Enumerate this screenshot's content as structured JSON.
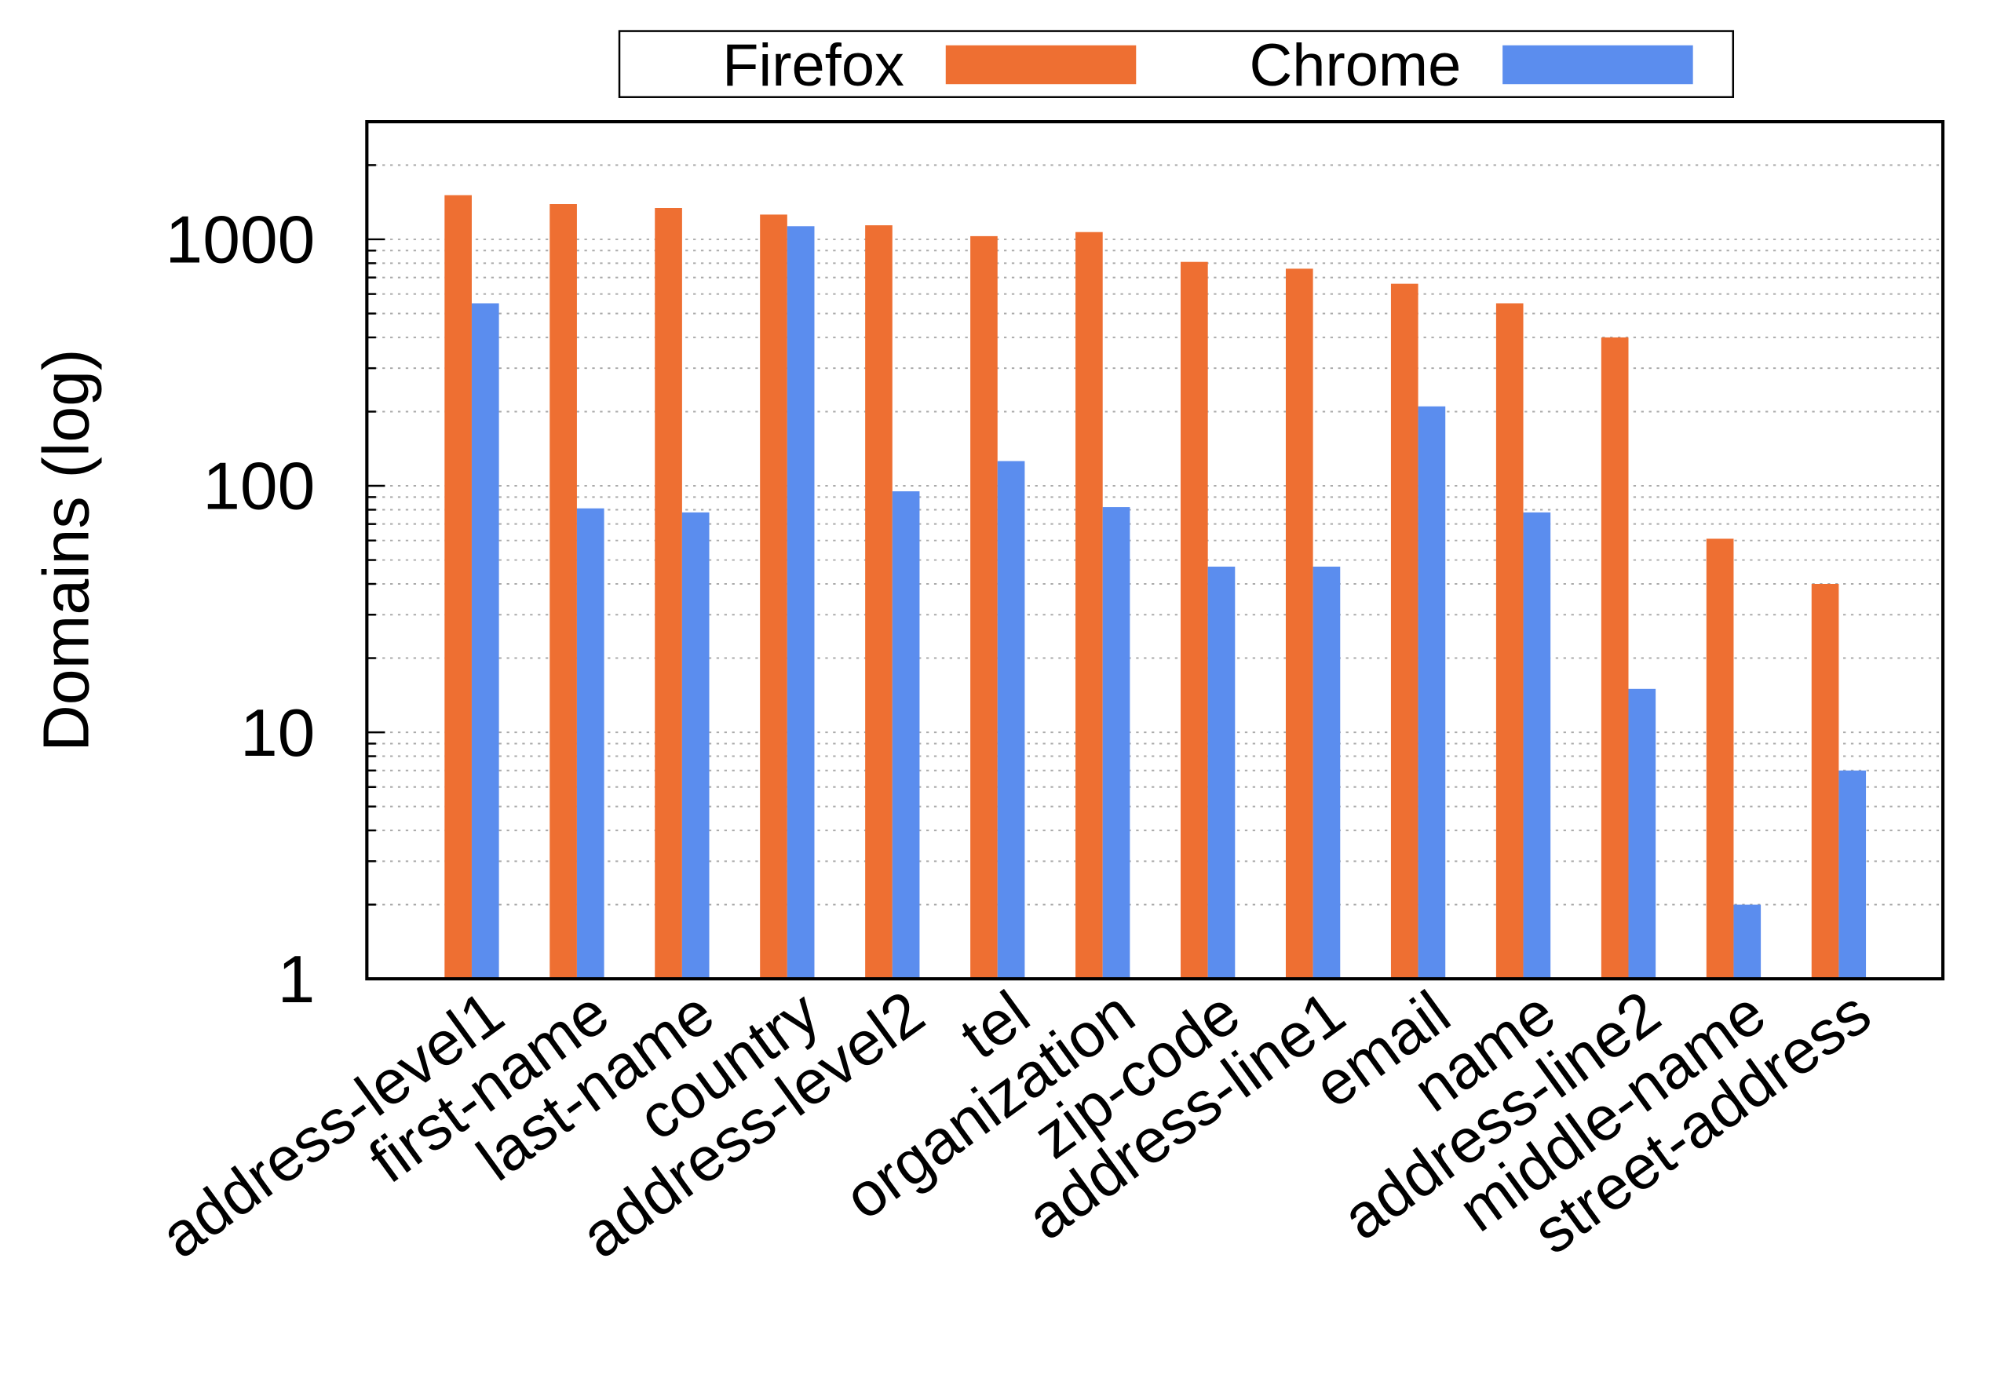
{
  "chart_data": {
    "type": "bar",
    "title": "",
    "xlabel": "",
    "ylabel": "Domains (log)",
    "yscale": "log",
    "ylim": [
      1,
      3000
    ],
    "yticks": [
      1,
      10,
      100,
      1000
    ],
    "ytick_labels": [
      "1",
      "10",
      "100",
      "1000"
    ],
    "grid": "horizontal dotted minor",
    "legend_position": "top-center",
    "categories": [
      "address-level1",
      "first-name",
      "last-name",
      "country",
      "address-level2",
      "tel",
      "organization",
      "zip-code",
      "address-line1",
      "email",
      "name",
      "address-line2",
      "middle-name",
      "street-address"
    ],
    "series": [
      {
        "name": "Firefox",
        "color": "#EE6F32",
        "values": [
          1510,
          1390,
          1340,
          1260,
          1140,
          1030,
          1070,
          810,
          760,
          660,
          550,
          400,
          61,
          40
        ]
      },
      {
        "name": "Chrome",
        "color": "#5B8DEE",
        "values": [
          550,
          81,
          78,
          1130,
          95,
          126,
          82,
          47,
          47,
          210,
          78,
          15,
          2,
          7
        ]
      }
    ]
  }
}
